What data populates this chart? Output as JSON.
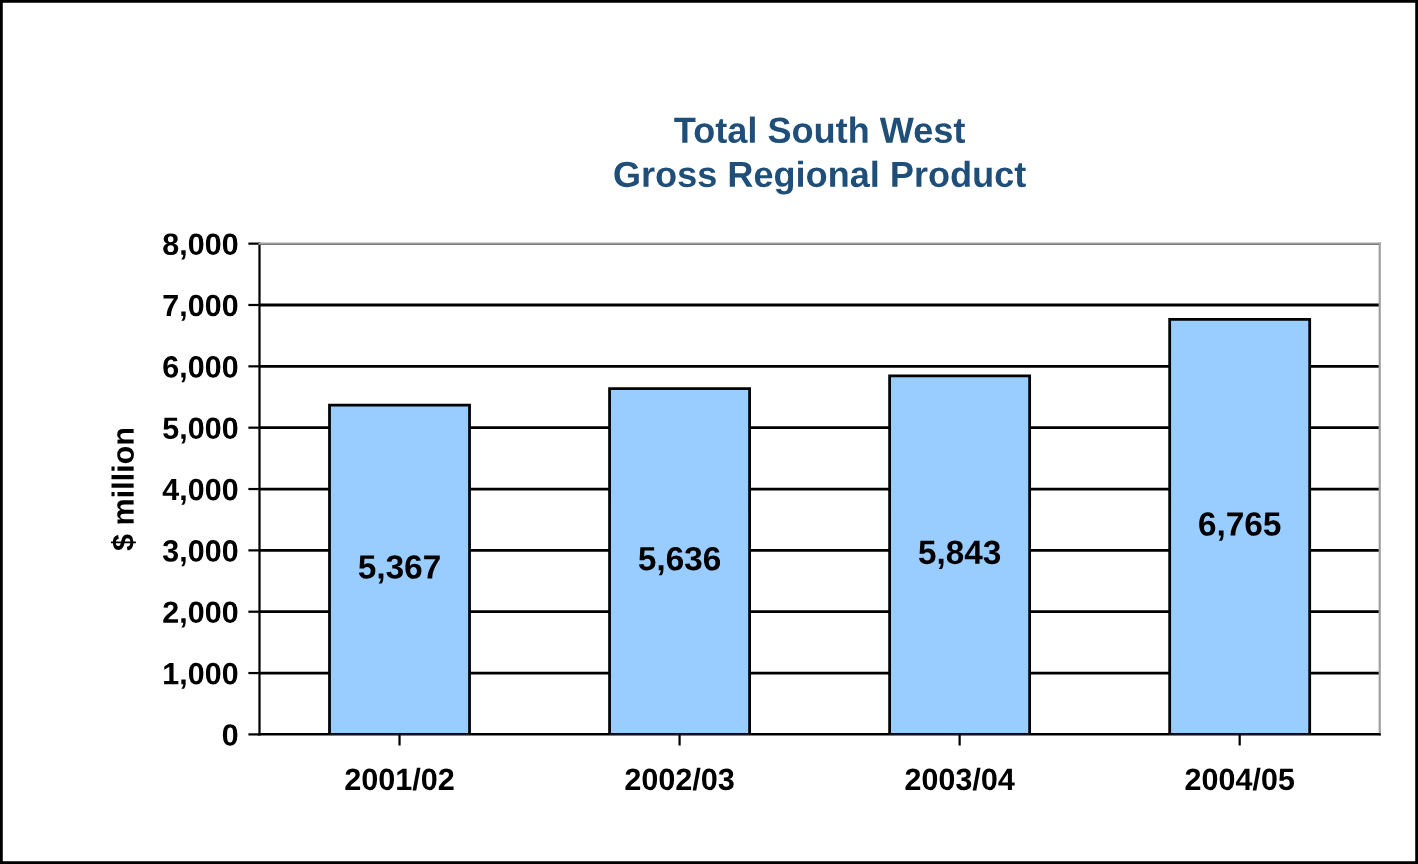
{
  "chart_data": {
    "type": "bar",
    "title": "Total South West\nGross Regional Product",
    "ylabel": "$ million",
    "categories": [
      "2001/02",
      "2002/03",
      "2003/04",
      "2004/05"
    ],
    "values": [
      5367,
      5636,
      5843,
      6765
    ],
    "value_labels": [
      "5,367",
      "5,636",
      "5,843",
      "6,765"
    ],
    "color": "#99ccff",
    "ylim": [
      0,
      8000
    ],
    "yticks": [
      {
        "value": 0,
        "label": "0"
      },
      {
        "value": 1000,
        "label": "1,000"
      },
      {
        "value": 2000,
        "label": "2,000"
      },
      {
        "value": 3000,
        "label": "3,000"
      },
      {
        "value": 4000,
        "label": "4,000"
      },
      {
        "value": 5000,
        "label": "5,000"
      },
      {
        "value": 6000,
        "label": "6,000"
      },
      {
        "value": 7000,
        "label": "7,000"
      },
      {
        "value": 8000,
        "label": "8,000"
      }
    ],
    "grid": "y",
    "legend": false
  }
}
